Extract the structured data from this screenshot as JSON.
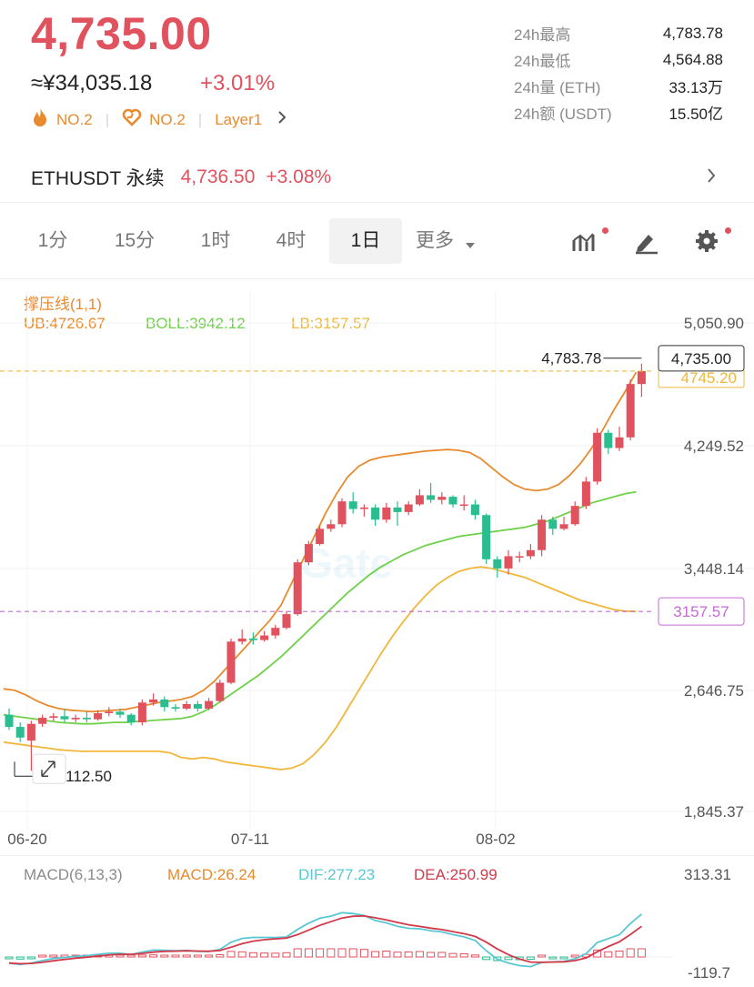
{
  "header": {
    "price": "4,735.00",
    "cny_price": "≈¥34,035.18",
    "change_pct": "+3.01%",
    "tags": [
      {
        "icon": "fire-icon",
        "label": "NO.2"
      },
      {
        "icon": "heart-icon",
        "label": "NO.2"
      },
      {
        "icon": "",
        "label": "Layer1"
      }
    ]
  },
  "stats": [
    {
      "label": "24h最高",
      "value": "4,783.78"
    },
    {
      "label": "24h最低",
      "value": "4,564.88"
    },
    {
      "label": "24h量 (ETH)",
      "value": "33.13万"
    },
    {
      "label": "24h额 (USDT)",
      "value": "15.50亿"
    }
  ],
  "perpetual": {
    "name": "ETHUSDT 永续",
    "price": "4,736.50",
    "change": "+3.08%"
  },
  "timeframes": [
    "1分",
    "15分",
    "1时",
    "4时",
    "1日",
    "更多"
  ],
  "active_timeframe": "1日",
  "tools": [
    "indicator-icon",
    "draw-icon",
    "settings-icon"
  ],
  "colors": {
    "up": "#e0525e",
    "down": "#2bbd8f",
    "ub": "#e88a2e",
    "boll": "#6fd04a",
    "lb": "#f0b73c",
    "dif": "#59c7d3",
    "dea": "#d23a4a"
  },
  "boll": {
    "title": "撑压线(1,1)",
    "ub": "UB:4726.67",
    "boll": "BOLL:3942.12",
    "lb": "LB:3157.57"
  },
  "price_axis": [
    "5,050.90",
    "4,249.52",
    "3,448.14",
    "2,646.75",
    "1,845.37"
  ],
  "date_axis": [
    "06-20",
    "07-11",
    "08-02"
  ],
  "markers": {
    "high": "4,783.78",
    "low": "2,112.50",
    "last": "4,735.00",
    "last_hidden": "4745.20",
    "lb_line": "3157.57"
  },
  "macd": {
    "title": "MACD(6,13,3)",
    "macd": "MACD:26.24",
    "dif": "DIF:277.23",
    "dea": "DEA:250.99",
    "axis_top": "313.31",
    "axis_bottom": "-119.7"
  },
  "chart_data": {
    "type": "candlestick",
    "y_axis_range": [
      1845.37,
      5050.9
    ],
    "candles_approx": [
      {
        "o": 2480,
        "c": 2400,
        "h": 2520,
        "l": 2380
      },
      {
        "o": 2400,
        "c": 2330,
        "h": 2430,
        "l": 2300
      },
      {
        "o": 2310,
        "c": 2420,
        "h": 2440,
        "l": 2112.5
      },
      {
        "o": 2420,
        "c": 2460,
        "h": 2480,
        "l": 2400
      },
      {
        "o": 2460,
        "c": 2470,
        "h": 2490,
        "l": 2440
      },
      {
        "o": 2470,
        "c": 2450,
        "h": 2520,
        "l": 2430
      },
      {
        "o": 2450,
        "c": 2460,
        "h": 2480,
        "l": 2430
      },
      {
        "o": 2460,
        "c": 2450,
        "h": 2500,
        "l": 2430
      },
      {
        "o": 2450,
        "c": 2490,
        "h": 2510,
        "l": 2440
      },
      {
        "o": 2490,
        "c": 2500,
        "h": 2530,
        "l": 2470
      },
      {
        "o": 2500,
        "c": 2480,
        "h": 2520,
        "l": 2460
      },
      {
        "o": 2480,
        "c": 2430,
        "h": 2490,
        "l": 2410
      },
      {
        "o": 2430,
        "c": 2560,
        "h": 2580,
        "l": 2410
      },
      {
        "o": 2560,
        "c": 2580,
        "h": 2620,
        "l": 2540
      },
      {
        "o": 2580,
        "c": 2530,
        "h": 2600,
        "l": 2500
      },
      {
        "o": 2530,
        "c": 2520,
        "h": 2550,
        "l": 2500
      },
      {
        "o": 2520,
        "c": 2550,
        "h": 2570,
        "l": 2510
      },
      {
        "o": 2550,
        "c": 2520,
        "h": 2570,
        "l": 2500
      },
      {
        "o": 2520,
        "c": 2570,
        "h": 2590,
        "l": 2510
      },
      {
        "o": 2570,
        "c": 2690,
        "h": 2710,
        "l": 2560
      },
      {
        "o": 2690,
        "c": 2960,
        "h": 2980,
        "l": 2680
      },
      {
        "o": 2960,
        "c": 2980,
        "h": 3040,
        "l": 2940
      },
      {
        "o": 2980,
        "c": 2970,
        "h": 3020,
        "l": 2940
      },
      {
        "o": 2970,
        "c": 3000,
        "h": 3030,
        "l": 2960
      },
      {
        "o": 3000,
        "c": 3050,
        "h": 3070,
        "l": 2980
      },
      {
        "o": 3050,
        "c": 3140,
        "h": 3160,
        "l": 3040
      },
      {
        "o": 3140,
        "c": 3480,
        "h": 3500,
        "l": 3130
      },
      {
        "o": 3480,
        "c": 3600,
        "h": 3620,
        "l": 3460
      },
      {
        "o": 3600,
        "c": 3700,
        "h": 3720,
        "l": 3590
      },
      {
        "o": 3700,
        "c": 3730,
        "h": 3760,
        "l": 3680
      },
      {
        "o": 3730,
        "c": 3880,
        "h": 3900,
        "l": 3710
      },
      {
        "o": 3880,
        "c": 3830,
        "h": 3940,
        "l": 3800
      },
      {
        "o": 3830,
        "c": 3840,
        "h": 3860,
        "l": 3780
      },
      {
        "o": 3840,
        "c": 3760,
        "h": 3860,
        "l": 3720
      },
      {
        "o": 3760,
        "c": 3840,
        "h": 3870,
        "l": 3740
      },
      {
        "o": 3840,
        "c": 3810,
        "h": 3880,
        "l": 3720
      },
      {
        "o": 3810,
        "c": 3860,
        "h": 3880,
        "l": 3790
      },
      {
        "o": 3860,
        "c": 3920,
        "h": 3960,
        "l": 3850
      },
      {
        "o": 3920,
        "c": 3890,
        "h": 4000,
        "l": 3870
      },
      {
        "o": 3890,
        "c": 3910,
        "h": 3940,
        "l": 3860
      },
      {
        "o": 3910,
        "c": 3860,
        "h": 3920,
        "l": 3840
      },
      {
        "o": 3860,
        "c": 3860,
        "h": 3920,
        "l": 3820
      },
      {
        "o": 3860,
        "c": 3790,
        "h": 3890,
        "l": 3760
      },
      {
        "o": 3790,
        "c": 3500,
        "h": 3800,
        "l": 3470
      },
      {
        "o": 3500,
        "c": 3440,
        "h": 3520,
        "l": 3380
      },
      {
        "o": 3440,
        "c": 3520,
        "h": 3560,
        "l": 3400
      },
      {
        "o": 3520,
        "c": 3520,
        "h": 3550,
        "l": 3480
      },
      {
        "o": 3520,
        "c": 3560,
        "h": 3600,
        "l": 3500
      },
      {
        "o": 3560,
        "c": 3760,
        "h": 3790,
        "l": 3520
      },
      {
        "o": 3760,
        "c": 3700,
        "h": 3780,
        "l": 3660
      },
      {
        "o": 3700,
        "c": 3730,
        "h": 3780,
        "l": 3690
      },
      {
        "o": 3730,
        "c": 3850,
        "h": 3880,
        "l": 3720
      },
      {
        "o": 3850,
        "c": 4010,
        "h": 4040,
        "l": 3830
      },
      {
        "o": 4010,
        "c": 4330,
        "h": 4360,
        "l": 3990
      },
      {
        "o": 4330,
        "c": 4230,
        "h": 4350,
        "l": 4190
      },
      {
        "o": 4230,
        "c": 4300,
        "h": 4370,
        "l": 4210
      },
      {
        "o": 4300,
        "c": 4650,
        "h": 4680,
        "l": 4280
      },
      {
        "o": 4650,
        "c": 4735,
        "h": 4783.78,
        "l": 4564.88
      }
    ],
    "ub_approx": [
      2650,
      2640,
      2610,
      2570,
      2540,
      2520,
      2510,
      2505,
      2500,
      2505,
      2510,
      2515,
      2530,
      2545,
      2560,
      2570,
      2580,
      2600,
      2640,
      2700,
      2780,
      2860,
      2940,
      3020,
      3100,
      3200,
      3350,
      3500,
      3650,
      3800,
      3930,
      4040,
      4110,
      4150,
      4170,
      4180,
      4190,
      4200,
      4210,
      4215,
      4220,
      4215,
      4200,
      4160,
      4100,
      4040,
      3990,
      3960,
      3950,
      3960,
      3990,
      4050,
      4130,
      4230,
      4350,
      4480,
      4600,
      4726.67
    ],
    "boll_approx": [
      2480,
      2470,
      2460,
      2450,
      2440,
      2430,
      2425,
      2420,
      2420,
      2425,
      2430,
      2430,
      2435,
      2440,
      2445,
      2450,
      2455,
      2470,
      2500,
      2540,
      2590,
      2640,
      2690,
      2740,
      2800,
      2860,
      2930,
      3000,
      3070,
      3140,
      3210,
      3280,
      3340,
      3400,
      3450,
      3490,
      3530,
      3560,
      3590,
      3610,
      3630,
      3650,
      3660,
      3670,
      3680,
      3690,
      3700,
      3710,
      3730,
      3750,
      3780,
      3810,
      3840,
      3870,
      3890,
      3910,
      3930,
      3942.12
    ],
    "lb_approx": [
      2300,
      2290,
      2280,
      2270,
      2260,
      2250,
      2245,
      2240,
      2240,
      2240,
      2240,
      2240,
      2240,
      2240,
      2240,
      2230,
      2200,
      2190,
      2200,
      2190,
      2170,
      2160,
      2150,
      2140,
      2130,
      2120,
      2130,
      2160,
      2220,
      2300,
      2400,
      2520,
      2640,
      2760,
      2880,
      2990,
      3090,
      3180,
      3260,
      3330,
      3380,
      3420,
      3440,
      3450,
      3440,
      3420,
      3400,
      3380,
      3350,
      3320,
      3290,
      3260,
      3230,
      3210,
      3190,
      3170,
      3160,
      3157.57
    ]
  }
}
